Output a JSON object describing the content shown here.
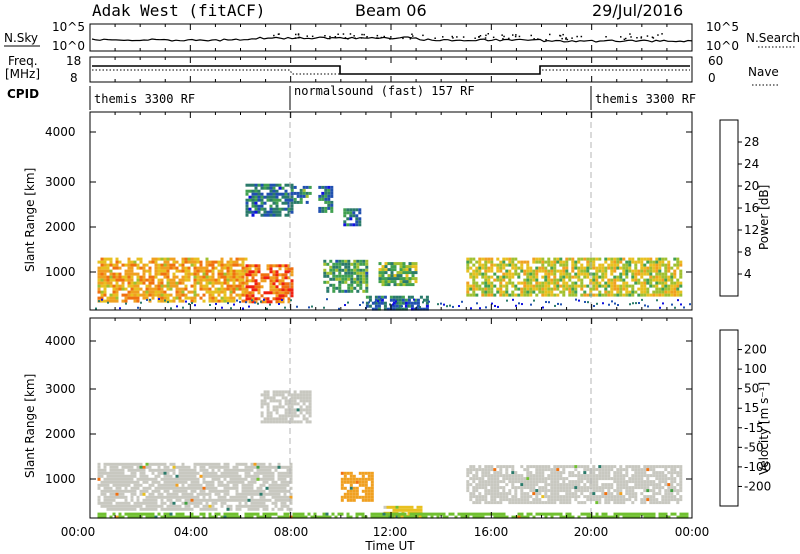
{
  "header": {
    "title": "Adak West (fitACF)",
    "beam": "Beam 06",
    "date": "29/Jul/2016"
  },
  "noise_panel": {
    "left_label": "N.Sky",
    "right_label": "N.Search",
    "left_ticks": [
      "10^5",
      "10^0"
    ],
    "right_ticks": [
      "10^5",
      "10^0"
    ]
  },
  "freq_panel": {
    "left_label_1": "Freq.",
    "left_label_2": "[MHz]",
    "right_label": "Nave",
    "left_ticks": [
      "18",
      "8"
    ],
    "right_ticks": [
      "60",
      "0"
    ]
  },
  "cpid": {
    "label": "CPID",
    "segments": [
      {
        "start_hour": 0,
        "end_hour": 8,
        "name": "themis 3300 RF"
      },
      {
        "start_hour": 8,
        "end_hour": 20,
        "name": "normalsound (fast) 157 RF"
      },
      {
        "start_hour": 20,
        "end_hour": 24,
        "name": "themis 3300 RF"
      }
    ]
  },
  "x_axis": {
    "label": "Time UT",
    "ticks": [
      "00:00",
      "04:00",
      "08:00",
      "12:00",
      "16:00",
      "20:00",
      "00:00"
    ]
  },
  "power_panel": {
    "ylabel": "Slant Range [km]",
    "yticks": [
      "4000",
      "3000",
      "2000",
      "1000"
    ],
    "colorbar_label": "Power [dB]",
    "colorbar_ticks": [
      "28",
      "24",
      "20",
      "16",
      "12",
      "8",
      "4"
    ],
    "colors": [
      "#1010e0",
      "#2050b0",
      "#2a7a6a",
      "#40a050",
      "#a0c030",
      "#e8c020",
      "#f0a020",
      "#f07010",
      "#f02010"
    ]
  },
  "velocity_panel": {
    "ylabel": "Slant Range [km]",
    "yticks": [
      "4000",
      "3000",
      "2000",
      "1000"
    ],
    "colorbar_label": "Velocity [m s⁻¹]",
    "colorbar_ticks": [
      "200",
      "100",
      "50",
      "15",
      "-15",
      "-50",
      "-100",
      "-200"
    ],
    "colors": [
      "#1a2aa0",
      "#2a7a6a",
      "#40a040",
      "#70c030",
      "#c8c8c0",
      "#e8c020",
      "#f0a020",
      "#f07010",
      "#f03010",
      "#e01010"
    ]
  },
  "chart_data": {
    "type": "heatmap",
    "x_unit": "hours UT",
    "xlim": [
      0,
      24
    ],
    "ylim_km": [
      180,
      4600
    ],
    "mode_change_hours": [
      8,
      20
    ],
    "power_regions": [
      {
        "t0": 0.3,
        "t1": 6.2,
        "r0": 350,
        "r1": 1350,
        "level_db": 22
      },
      {
        "t0": 6.2,
        "t1": 8.0,
        "r0": 350,
        "r1": 1200,
        "level_db": 26
      },
      {
        "t0": 6.2,
        "t1": 8.0,
        "r0": 2300,
        "r1": 3000,
        "level_db": 8
      },
      {
        "t0": 8.0,
        "t1": 8.8,
        "r0": 2600,
        "r1": 2950,
        "level_db": 10
      },
      {
        "t0": 9.1,
        "t1": 9.6,
        "r0": 2400,
        "r1": 2950,
        "level_db": 8
      },
      {
        "t0": 9.3,
        "t1": 11.0,
        "r0": 600,
        "r1": 1300,
        "level_db": 12
      },
      {
        "t0": 10.1,
        "t1": 10.8,
        "r0": 2100,
        "r1": 2450,
        "level_db": 8
      },
      {
        "t0": 11.5,
        "t1": 13.0,
        "r0": 750,
        "r1": 1250,
        "level_db": 14
      },
      {
        "t0": 11.0,
        "t1": 13.5,
        "r0": 200,
        "r1": 500,
        "level_db": 8
      },
      {
        "t0": 15.0,
        "t1": 23.6,
        "r0": 500,
        "r1": 1350,
        "level_db": 18
      }
    ],
    "velocity_regions": [
      {
        "t0": 0.3,
        "t1": 8.0,
        "r0": 350,
        "r1": 1400,
        "velocity": 0
      },
      {
        "t0": 6.8,
        "t1": 8.8,
        "r0": 2300,
        "r1": 3000,
        "velocity": 0
      },
      {
        "t0": 10.0,
        "t1": 11.2,
        "r0": 600,
        "r1": 1200,
        "velocity": -60
      },
      {
        "t0": 11.7,
        "t1": 13.2,
        "r0": 250,
        "r1": 450,
        "velocity": -30
      },
      {
        "t0": 15.0,
        "t1": 23.6,
        "r0": 500,
        "r1": 1350,
        "velocity": 0
      },
      {
        "t0": 0.3,
        "t1": 23.8,
        "r0": 200,
        "r1": 300,
        "velocity": 40
      }
    ]
  }
}
